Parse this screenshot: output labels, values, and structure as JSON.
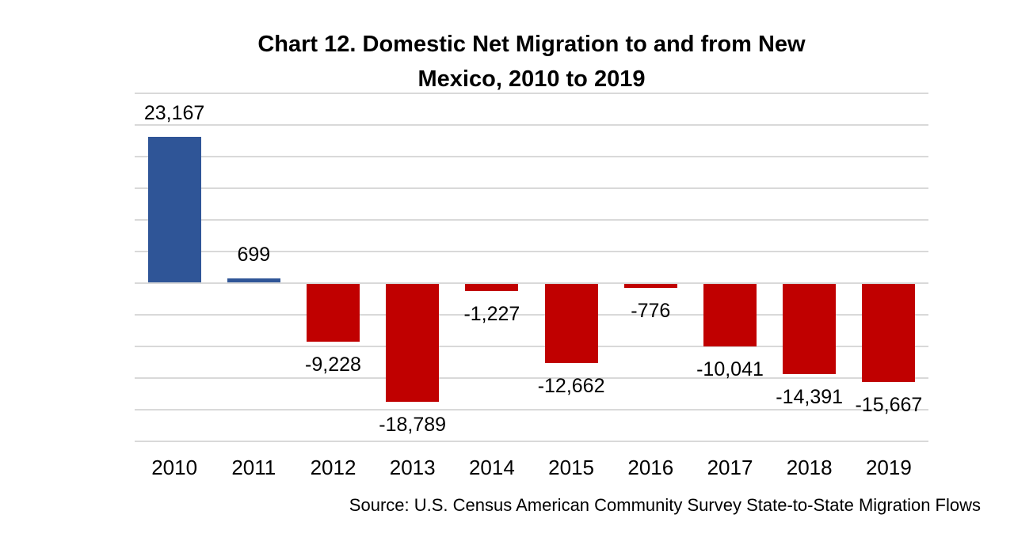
{
  "title_lines": [
    "Chart 12. Domestic Net Migration to and from New",
    "Mexico, 2010 to 2019"
  ],
  "chart_data": {
    "type": "bar",
    "title": "Chart 12. Domestic Net Migration to and from New Mexico, 2010 to 2019",
    "categories": [
      "2010",
      "2011",
      "2012",
      "2013",
      "2014",
      "2015",
      "2016",
      "2017",
      "2018",
      "2019"
    ],
    "values": [
      23167,
      699,
      -9228,
      -18789,
      -1227,
      -12662,
      -776,
      -10041,
      -14391,
      -15667
    ],
    "data_labels": [
      "23,167",
      "699",
      "-9,228",
      "-18,789",
      "-1,227",
      "-12,662",
      "-776",
      "-10,041",
      "-14,391",
      "-15,667"
    ],
    "xlabel": "",
    "ylabel": "",
    "ylim": [
      -25000,
      30000
    ],
    "gridline_step": 5000,
    "grid": true,
    "legend": "none",
    "y_axis_tick_labels_visible": false,
    "positive_color": "#2F5597",
    "negative_color": "#C00000",
    "gridline_color": "#D9D9D9",
    "label_color": "#000000",
    "source": "Source: U.S. Census American Community Survey State-to-State Migration Flows"
  }
}
